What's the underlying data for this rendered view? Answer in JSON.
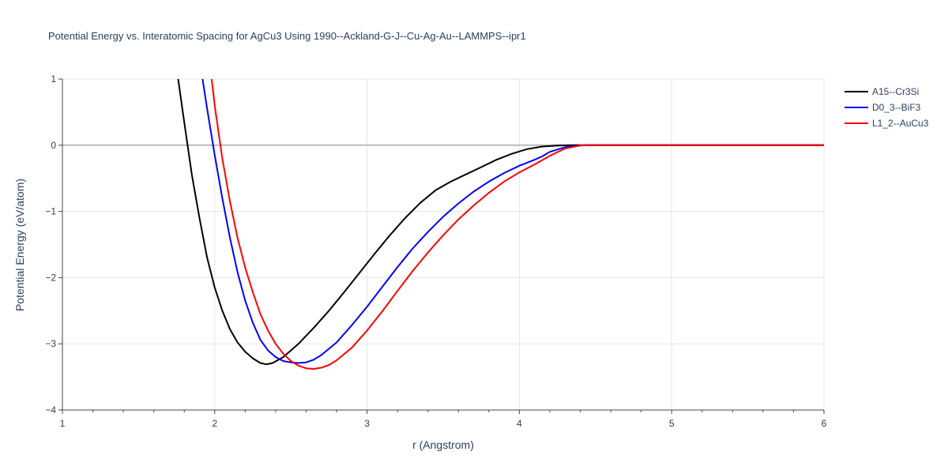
{
  "chart_data": {
    "type": "line",
    "title": "Potential Energy vs. Interatomic Spacing for AgCu3 Using 1990--Ackland-G-J--Cu-Ag-Au--LAMMPS--ipr1",
    "xlabel": "r (Angstrom)",
    "ylabel": "Potential Energy (eV/atom)",
    "xlim": [
      1,
      6
    ],
    "ylim": [
      -4,
      1
    ],
    "x_ticks": [
      "1",
      "2",
      "3",
      "4",
      "5",
      "6"
    ],
    "y_ticks": [
      "1",
      "0",
      "−1",
      "−2",
      "−3",
      "−4"
    ],
    "grid": true,
    "legend_position": "top-right",
    "series": [
      {
        "name": "A15--Cr3Si",
        "color": "#000000",
        "points": [
          [
            1.76,
            1.0
          ],
          [
            1.8,
            0.35
          ],
          [
            1.85,
            -0.45
          ],
          [
            1.9,
            -1.1
          ],
          [
            1.95,
            -1.7
          ],
          [
            2.0,
            -2.15
          ],
          [
            2.05,
            -2.5
          ],
          [
            2.1,
            -2.78
          ],
          [
            2.15,
            -2.98
          ],
          [
            2.2,
            -3.12
          ],
          [
            2.25,
            -3.22
          ],
          [
            2.3,
            -3.29
          ],
          [
            2.34,
            -3.31
          ],
          [
            2.38,
            -3.29
          ],
          [
            2.45,
            -3.2
          ],
          [
            2.55,
            -3.0
          ],
          [
            2.65,
            -2.76
          ],
          [
            2.75,
            -2.5
          ],
          [
            2.85,
            -2.22
          ],
          [
            2.95,
            -1.93
          ],
          [
            3.05,
            -1.64
          ],
          [
            3.15,
            -1.36
          ],
          [
            3.25,
            -1.1
          ],
          [
            3.35,
            -0.87
          ],
          [
            3.45,
            -0.68
          ],
          [
            3.55,
            -0.55
          ],
          [
            3.65,
            -0.44
          ],
          [
            3.75,
            -0.33
          ],
          [
            3.85,
            -0.22
          ],
          [
            3.95,
            -0.13
          ],
          [
            4.05,
            -0.06
          ],
          [
            4.15,
            -0.02
          ],
          [
            4.25,
            -0.005
          ],
          [
            4.35,
            0.0
          ],
          [
            4.45,
            0.0
          ],
          [
            5.0,
            0.0
          ],
          [
            6.0,
            0.0
          ]
        ]
      },
      {
        "name": "D0_3--BiF3",
        "color": "#0000ff",
        "points": [
          [
            1.92,
            1.0
          ],
          [
            1.95,
            0.55
          ],
          [
            2.0,
            -0.15
          ],
          [
            2.05,
            -0.8
          ],
          [
            2.1,
            -1.4
          ],
          [
            2.15,
            -1.92
          ],
          [
            2.2,
            -2.35
          ],
          [
            2.25,
            -2.68
          ],
          [
            2.3,
            -2.94
          ],
          [
            2.35,
            -3.1
          ],
          [
            2.4,
            -3.2
          ],
          [
            2.45,
            -3.26
          ],
          [
            2.5,
            -3.28
          ],
          [
            2.55,
            -3.29
          ],
          [
            2.6,
            -3.28
          ],
          [
            2.65,
            -3.24
          ],
          [
            2.7,
            -3.17
          ],
          [
            2.8,
            -2.98
          ],
          [
            2.9,
            -2.72
          ],
          [
            3.0,
            -2.44
          ],
          [
            3.1,
            -2.14
          ],
          [
            3.2,
            -1.84
          ],
          [
            3.3,
            -1.56
          ],
          [
            3.4,
            -1.31
          ],
          [
            3.5,
            -1.08
          ],
          [
            3.6,
            -0.88
          ],
          [
            3.7,
            -0.7
          ],
          [
            3.8,
            -0.55
          ],
          [
            3.9,
            -0.42
          ],
          [
            4.0,
            -0.31
          ],
          [
            4.1,
            -0.22
          ],
          [
            4.15,
            -0.17
          ],
          [
            4.2,
            -0.1
          ],
          [
            4.3,
            -0.03
          ],
          [
            4.4,
            -0.005
          ],
          [
            4.45,
            0.0
          ],
          [
            5.0,
            0.0
          ],
          [
            6.0,
            0.0
          ]
        ]
      },
      {
        "name": "L1_2--AuCu3",
        "color": "#ff0000",
        "points": [
          [
            1.98,
            1.0
          ],
          [
            2.0,
            0.6
          ],
          [
            2.05,
            -0.2
          ],
          [
            2.1,
            -0.85
          ],
          [
            2.15,
            -1.4
          ],
          [
            2.2,
            -1.85
          ],
          [
            2.25,
            -2.22
          ],
          [
            2.3,
            -2.55
          ],
          [
            2.35,
            -2.8
          ],
          [
            2.4,
            -3.0
          ],
          [
            2.45,
            -3.15
          ],
          [
            2.5,
            -3.26
          ],
          [
            2.55,
            -3.33
          ],
          [
            2.6,
            -3.37
          ],
          [
            2.65,
            -3.38
          ],
          [
            2.7,
            -3.36
          ],
          [
            2.75,
            -3.32
          ],
          [
            2.8,
            -3.25
          ],
          [
            2.9,
            -3.06
          ],
          [
            3.0,
            -2.8
          ],
          [
            3.1,
            -2.51
          ],
          [
            3.2,
            -2.2
          ],
          [
            3.3,
            -1.9
          ],
          [
            3.4,
            -1.62
          ],
          [
            3.5,
            -1.36
          ],
          [
            3.6,
            -1.12
          ],
          [
            3.7,
            -0.91
          ],
          [
            3.8,
            -0.72
          ],
          [
            3.9,
            -0.55
          ],
          [
            4.0,
            -0.41
          ],
          [
            4.1,
            -0.29
          ],
          [
            4.2,
            -0.16
          ],
          [
            4.3,
            -0.05
          ],
          [
            4.4,
            -0.005
          ],
          [
            4.45,
            0.0
          ],
          [
            5.0,
            0.0
          ],
          [
            6.0,
            0.0
          ]
        ]
      }
    ]
  }
}
